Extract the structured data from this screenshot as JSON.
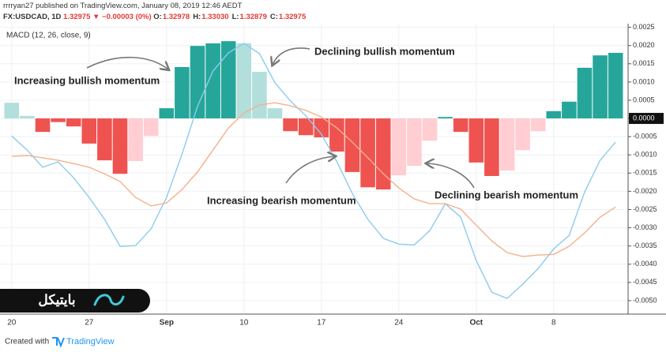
{
  "header": {
    "publisher": "rrrryan27 published on TradingView.com, January 08, 2019 12:46 AEDT",
    "symbol": "FX:USDCAD, 1D",
    "price": "1.32975",
    "change": "▼ −0.00003 (0%)",
    "ohlc": [
      {
        "label": "O:",
        "value": "1.32978"
      },
      {
        "label": "H:",
        "value": "1.33030"
      },
      {
        "label": "L:",
        "value": "1.32879"
      },
      {
        "label": "C:",
        "value": "1.32975"
      }
    ]
  },
  "chart_data": {
    "type": "bar",
    "title": "MACD (12, 26, close, 9)",
    "categories": [
      "20",
      null,
      null,
      null,
      null,
      "27",
      null,
      null,
      null,
      null,
      "Sep",
      null,
      null,
      null,
      null,
      "10",
      null,
      null,
      null,
      null,
      "17",
      null,
      null,
      null,
      null,
      "24",
      null,
      null,
      null,
      null,
      "Oct",
      null,
      null,
      null,
      null,
      "8",
      null,
      null,
      null,
      null
    ],
    "values": [
      0.00043,
      7e-05,
      -0.00037,
      -0.0001,
      -0.00022,
      -0.00069,
      -0.00115,
      -0.00152,
      -0.00117,
      -0.00048,
      0.00028,
      0.00141,
      0.00199,
      0.00206,
      0.00212,
      0.00206,
      0.00128,
      0.00028,
      -0.00035,
      -0.00046,
      -0.00052,
      -0.00091,
      -0.00147,
      -0.00189,
      -0.00195,
      -0.00156,
      -0.0013,
      -0.00061,
      4e-05,
      -0.00037,
      -0.00121,
      -0.00158,
      -0.00143,
      -0.00087,
      -0.00035,
      0.0002,
      0.00046,
      0.00139,
      0.00173,
      0.0018
    ],
    "colors": [
      "#b2dfdb",
      "#b2dfdb",
      "#ef5350",
      "#ef5350",
      "#ef5350",
      "#ef5350",
      "#ef5350",
      "#ef5350",
      "#ffcdd2",
      "#ffcdd2",
      "#26a69a",
      "#26a69a",
      "#26a69a",
      "#26a69a",
      "#26a69a",
      "#b2dfdb",
      "#b2dfdb",
      "#b2dfdb",
      "#ef5350",
      "#ef5350",
      "#ef5350",
      "#ef5350",
      "#ef5350",
      "#ef5350",
      "#ef5350",
      "#ffcdd2",
      "#ffcdd2",
      "#ffcdd2",
      "#26a69a",
      "#ef5350",
      "#ef5350",
      "#ef5350",
      "#ffcdd2",
      "#ffcdd2",
      "#ffcdd2",
      "#26a69a",
      "#26a69a",
      "#26a69a",
      "#26a69a",
      "#26a69a"
    ],
    "series": [
      {
        "color": "#8ccbee",
        "values": [
          -0.00048,
          -0.00087,
          -0.00134,
          -0.00119,
          -0.00163,
          -0.00217,
          -0.00277,
          -0.00351,
          -0.00349,
          -0.00303,
          -0.00217,
          -0.00098,
          0.00033,
          0.0013,
          0.0018,
          0.00206,
          0.00178,
          0.00098,
          0.00048,
          7e-05,
          -0.00043,
          -0.00119,
          -0.00206,
          -0.00277,
          -0.00329,
          -0.00345,
          -0.00347,
          -0.00308,
          -0.00234,
          -0.00271,
          -0.0039,
          -0.00477,
          -0.00494,
          -0.00455,
          -0.00412,
          -0.00358,
          -0.00321,
          -0.00202,
          -0.00115,
          -0.00065
        ]
      },
      {
        "color": "#f6b08a",
        "values": [
          -0.00104,
          -0.00102,
          -0.00108,
          -0.00115,
          -0.00124,
          -0.00134,
          -0.00152,
          -0.00173,
          -0.00217,
          -0.0024,
          -0.00232,
          -0.00195,
          -0.00147,
          -0.00087,
          -0.00026,
          0.00015,
          0.00037,
          0.00043,
          0.00035,
          0.00022,
          4e-05,
          -0.00026,
          -0.00065,
          -0.00108,
          -0.00152,
          -0.00191,
          -0.00221,
          -0.00234,
          -0.00234,
          -0.00249,
          -0.00293,
          -0.00336,
          -0.00368,
          -0.00379,
          -0.00375,
          -0.00373,
          -0.00351,
          -0.00314,
          -0.00271,
          -0.00243
        ]
      }
    ],
    "ylim": [
      -0.00537,
      0.0026
    ],
    "yticks": [
      {
        "value": 0.0025,
        "label": "0.0025"
      },
      {
        "value": 0.002,
        "label": "0.0020"
      },
      {
        "value": 0.0015,
        "label": "0.0015"
      },
      {
        "value": 0.001,
        "label": "0.0010"
      },
      {
        "value": 0.0005,
        "label": "0.0005"
      },
      {
        "value": 0,
        "label": "0.0000"
      },
      {
        "value": -0.0005,
        "label": "-0.0005"
      },
      {
        "value": -0.001,
        "label": "-0.0010"
      },
      {
        "value": -0.0015,
        "label": "-0.0015"
      },
      {
        "value": -0.002,
        "label": "-0.0020"
      },
      {
        "value": -0.0025,
        "label": "-0.0025"
      },
      {
        "value": -0.003,
        "label": "-0.0030"
      },
      {
        "value": -0.0035,
        "label": "-0.0035"
      },
      {
        "value": -0.004,
        "label": "-0.0040"
      },
      {
        "value": -0.0045,
        "label": "-0.0045"
      },
      {
        "value": -0.005,
        "label": "-0.0050"
      }
    ],
    "grid": true,
    "annotations": [
      "Increasing bullish momentum",
      "Declining bullish momentum",
      "Increasing bearish momentum",
      "Declining bearish momentum"
    ]
  },
  "logo": "بایتیکل",
  "footer": {
    "created": "Created with",
    "brand": "TradingView"
  }
}
